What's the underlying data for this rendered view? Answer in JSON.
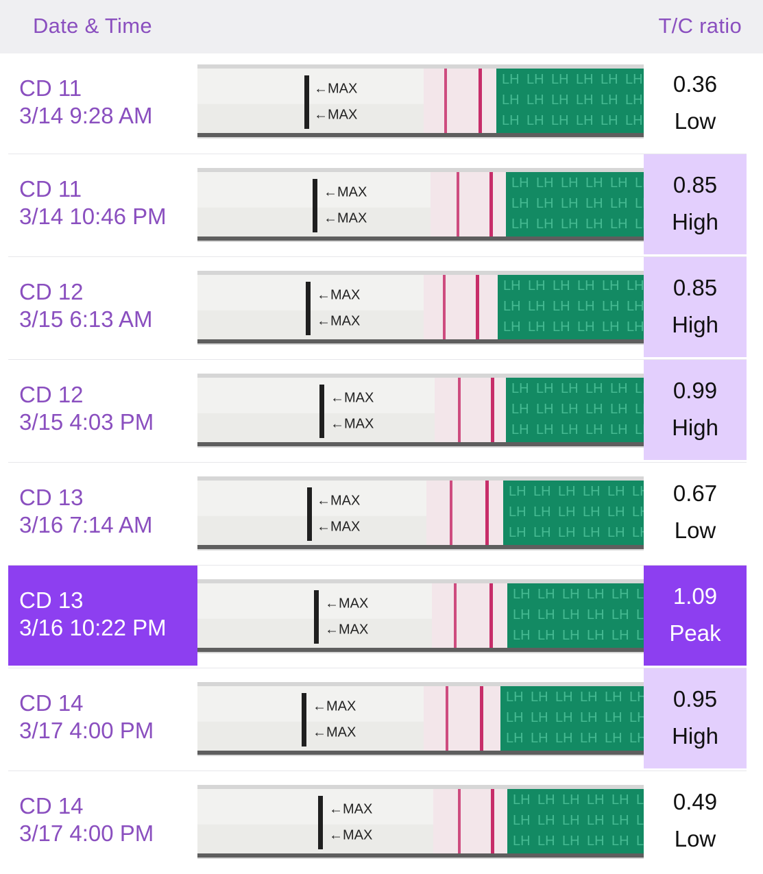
{
  "header": {
    "date_label": "Date & Time",
    "ratio_label": "T/C ratio"
  },
  "colors": {
    "accent": "#8a4fbf",
    "peak": "#8d3ff0",
    "high": "#e3cffd",
    "strip_green": "#138a63",
    "line_red": "#c2185b"
  },
  "strip_text": {
    "max_label": "←MAX",
    "lh_label": "LH"
  },
  "rows": [
    {
      "cd": "CD 11",
      "datetime": "3/14 9:28 AM",
      "ratio": "0.36",
      "level": "Low"
    },
    {
      "cd": "CD 11",
      "datetime": "3/14 10:46 PM",
      "ratio": "0.85",
      "level": "High"
    },
    {
      "cd": "CD 12",
      "datetime": "3/15 6:13 AM",
      "ratio": "0.85",
      "level": "High"
    },
    {
      "cd": "CD 12",
      "datetime": "3/15 4:03 PM",
      "ratio": "0.99",
      "level": "High"
    },
    {
      "cd": "CD 13",
      "datetime": "3/16 7:14 AM",
      "ratio": "0.67",
      "level": "Low"
    },
    {
      "cd": "CD 13",
      "datetime": "3/16 10:22 PM",
      "ratio": "1.09",
      "level": "Peak"
    },
    {
      "cd": "CD 14",
      "datetime": "3/17 4:00 PM",
      "ratio": "0.95",
      "level": "High"
    },
    {
      "cd": "CD 14",
      "datetime": "3/17 4:00 PM",
      "ratio": "0.49",
      "level": "Low"
    }
  ]
}
